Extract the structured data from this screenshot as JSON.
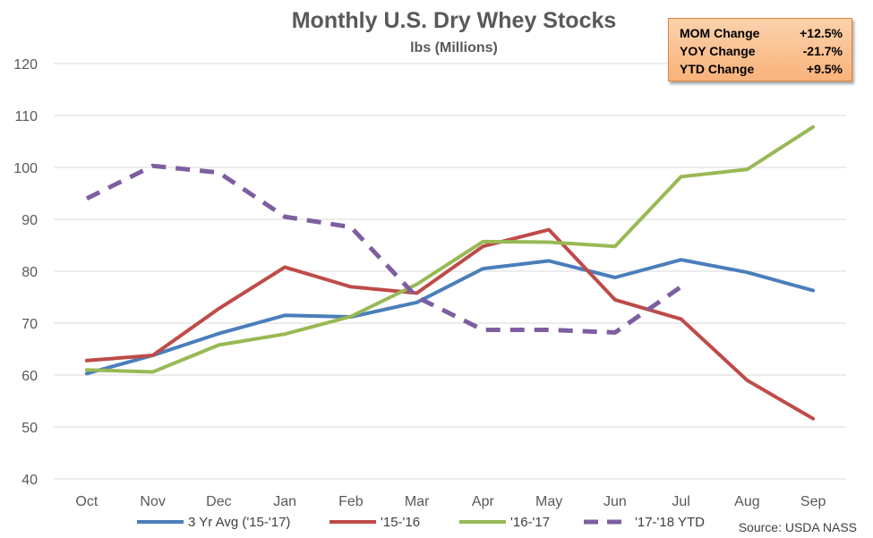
{
  "chart_data": {
    "type": "line",
    "title": "Monthly U.S. Dry Whey Stocks",
    "subtitle": "lbs (Millions)",
    "categories": [
      "Oct",
      "Nov",
      "Dec",
      "Jan",
      "Feb",
      "Mar",
      "Apr",
      "May",
      "Jun",
      "Jul",
      "Aug",
      "Sep"
    ],
    "ylim": [
      40,
      120
    ],
    "yticks": [
      40,
      50,
      60,
      70,
      80,
      90,
      100,
      110,
      120
    ],
    "grid": true,
    "legend_position": "bottom",
    "series": [
      {
        "name": "3 Yr Avg ('15-'17)",
        "color": "#4a7ebb",
        "dashed": false,
        "values": [
          60.3,
          63.8,
          68.0,
          71.5,
          71.2,
          74.0,
          80.5,
          82.0,
          78.8,
          82.2,
          79.8,
          76.3
        ]
      },
      {
        "name": "'15-'16",
        "color": "#be4b48",
        "dashed": false,
        "values": [
          62.8,
          63.8,
          72.8,
          80.8,
          77.0,
          75.8,
          84.8,
          88.0,
          74.5,
          70.8,
          59.0,
          51.6
        ]
      },
      {
        "name": "'16-'17",
        "color": "#98b954",
        "dashed": false,
        "values": [
          61.0,
          60.6,
          65.8,
          67.9,
          71.3,
          77.5,
          85.7,
          85.6,
          84.8,
          98.2,
          99.6,
          107.8
        ]
      },
      {
        "name": "'17-'18 YTD",
        "color": "#7d5fa0",
        "dashed": true,
        "values": [
          94.0,
          100.3,
          99.0,
          90.5,
          88.5,
          75.0,
          68.7,
          68.7,
          68.2,
          77.0,
          null,
          null
        ]
      }
    ],
    "source": "Source: USDA NASS"
  },
  "stats": [
    {
      "label": "MOM Change",
      "value": "+12.5%"
    },
    {
      "label": "YOY Change",
      "value": "-21.7%"
    },
    {
      "label": "YTD Change",
      "value": "+9.5%"
    }
  ]
}
